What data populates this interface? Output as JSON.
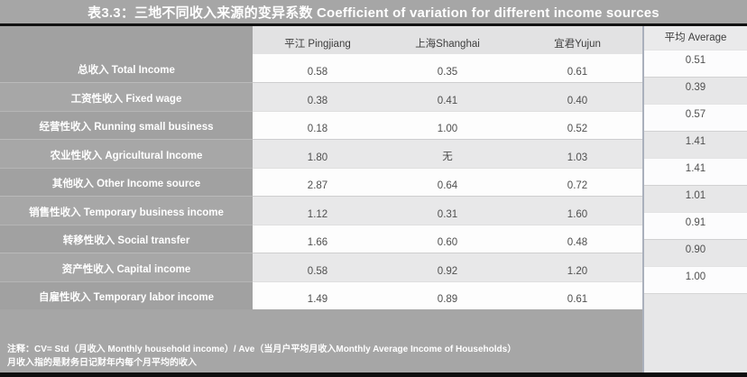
{
  "chart_data": {
    "type": "table",
    "title": "表3.3：三地不同收入来源的变异系数 Coefficient of variation for different income sources",
    "columns": [
      "平江 Pingjiang",
      "上海Shanghai",
      "宜君Yujun"
    ],
    "average_header": "平均 Average",
    "rows": [
      {
        "label": "总收入 Total Income",
        "pingjiang": "0.58",
        "shanghai": "0.35",
        "yujun": "0.61",
        "average": "0.51"
      },
      {
        "label": "工资性收入 Fixed wage",
        "pingjiang": "0.38",
        "shanghai": "0.41",
        "yujun": "0.40",
        "average": "0.39"
      },
      {
        "label": "经营性收入 Running small business",
        "pingjiang": "0.18",
        "shanghai": "1.00",
        "yujun": "0.52",
        "average": "0.57"
      },
      {
        "label": "农业性收入 Agricultural Income",
        "pingjiang": "1.80",
        "shanghai": "无",
        "yujun": "1.03",
        "average": "1.41"
      },
      {
        "label": "其他收入  Other Income source",
        "pingjiang": "2.87",
        "shanghai": "0.64",
        "yujun": "0.72",
        "average": "1.41"
      },
      {
        "label": "销售性收入 Temporary business income",
        "pingjiang": "1.12",
        "shanghai": "0.31",
        "yujun": "1.60",
        "average": "1.01"
      },
      {
        "label": "转移性收入 Social transfer",
        "pingjiang": "1.66",
        "shanghai": "0.60",
        "yujun": "0.48",
        "average": "0.91"
      },
      {
        "label": "资产性收入 Capital income",
        "pingjiang": "0.58",
        "shanghai": "0.92",
        "yujun": "1.20",
        "average": "0.90"
      },
      {
        "label": "自雇性收入 Temporary labor income",
        "pingjiang": "1.49",
        "shanghai": "0.89",
        "yujun": "0.61",
        "average": "1.00"
      }
    ],
    "notes": [
      "注释：CV= Std（月收入 Monthly household income）/ Ave（当月户平均月收入Monthly Average  Income of Households）",
      "月收入指的是财务日记财年内每个月平均的收入"
    ]
  },
  "colors": {
    "slide_gray": "#a6a6a6",
    "label_column_gray": "#a1a1a1",
    "band_white": "#fdfdfd",
    "band_light_gray": "#e8e8e9",
    "header_band_gray": "#e2e2e3",
    "divider_black": "#121212",
    "average_column_border": "#aab0bc",
    "value_text": "#4f4f4f",
    "label_text": "#ffffff"
  }
}
